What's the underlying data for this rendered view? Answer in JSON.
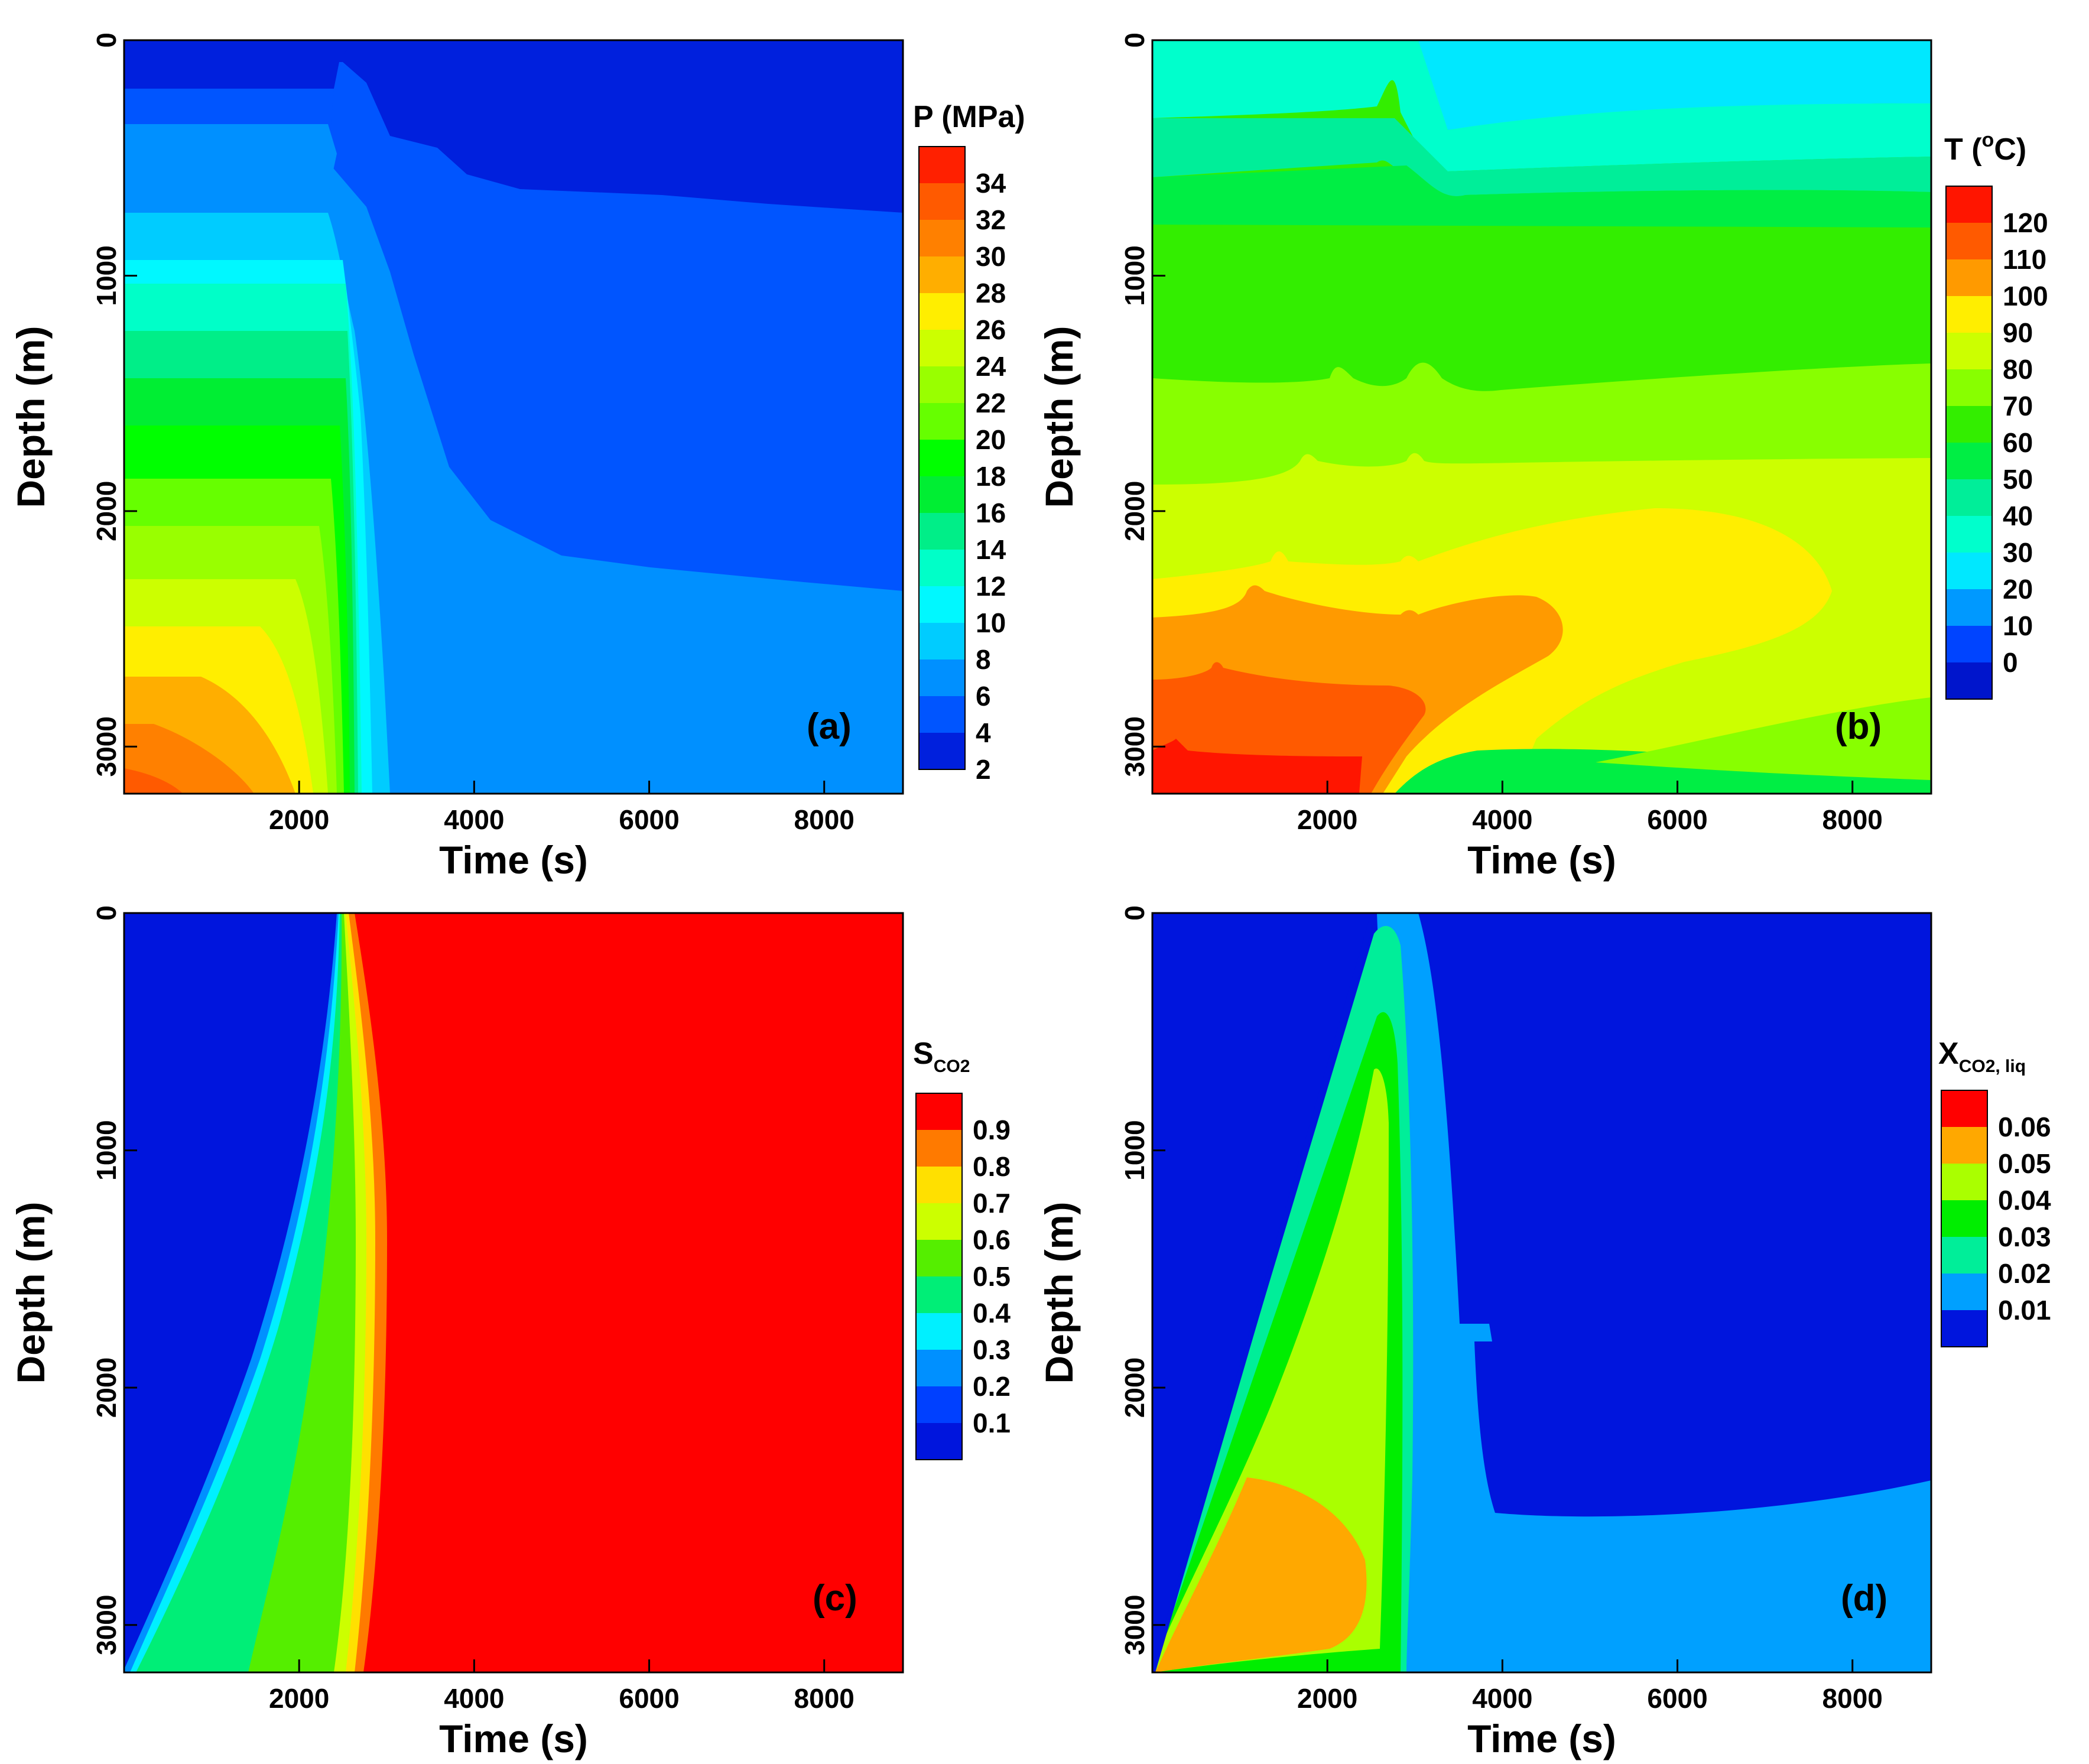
{
  "chart_data": [
    {
      "type": "heatmap",
      "panel": "(a)",
      "xlabel": "Time (s)",
      "ylabel": "Depth (m)",
      "xlim": [
        0,
        8900
      ],
      "ylim": [
        0,
        3200
      ],
      "xticks": [
        2000,
        4000,
        6000,
        8000
      ],
      "yticks": [
        0,
        1000,
        2000,
        3000
      ],
      "colorbar": {
        "title": "P (MPa)",
        "labels": [
          "34",
          "32",
          "30",
          "28",
          "26",
          "24",
          "22",
          "20",
          "18",
          "16",
          "14",
          "12",
          "10",
          "8",
          "6",
          "4",
          "2"
        ],
        "colors": [
          "#ff2000",
          "#ff5a00",
          "#ff8000",
          "#ffae00",
          "#ffee00",
          "#ccff00",
          "#99ff00",
          "#66ff00",
          "#00ff00",
          "#00ee33",
          "#00ee88",
          "#00ffc8",
          "#00f8ff",
          "#00ccff",
          "#0090ff",
          "#0055ff",
          "#0020dd"
        ]
      }
    },
    {
      "type": "heatmap",
      "panel": "(b)",
      "xlabel": "Time (s)",
      "ylabel": "Depth (m)",
      "xlim": [
        0,
        8900
      ],
      "ylim": [
        0,
        3200
      ],
      "xticks": [
        2000,
        4000,
        6000,
        8000
      ],
      "yticks": [
        0,
        1000,
        2000,
        3000
      ],
      "colorbar": {
        "title_main": "T (",
        "title_sup": "o",
        "title_end": "C)",
        "labels": [
          "120",
          "110",
          "100",
          "90",
          "80",
          "70",
          "60",
          "50",
          "40",
          "30",
          "20",
          "10",
          "0"
        ],
        "colors": [
          "#ff1500",
          "#ff5a00",
          "#ff9a00",
          "#ffee00",
          "#ccff00",
          "#88ff00",
          "#33ee00",
          "#00ee44",
          "#00ee99",
          "#00ffcc",
          "#00e8ff",
          "#0099ff",
          "#0044ff",
          "#0015cc"
        ]
      }
    },
    {
      "type": "heatmap",
      "panel": "(c)",
      "xlabel": "Time (s)",
      "ylabel": "Depth (m)",
      "xlim": [
        0,
        8900
      ],
      "ylim": [
        0,
        3200
      ],
      "xticks": [
        2000,
        4000,
        6000,
        8000
      ],
      "yticks": [
        0,
        1000,
        2000,
        3000
      ],
      "colorbar": {
        "title_main": "S",
        "title_sub": "CO2",
        "labels": [
          "0.9",
          "0.8",
          "0.7",
          "0.6",
          "0.5",
          "0.4",
          "0.3",
          "0.2",
          "0.1"
        ],
        "colors": [
          "#ff0000",
          "#ff7a00",
          "#ffe000",
          "#ccff00",
          "#55ee00",
          "#00ee77",
          "#00f0ff",
          "#0090ff",
          "#0040ff",
          "#0015dd"
        ]
      }
    },
    {
      "type": "heatmap",
      "panel": "(d)",
      "xlabel": "Time (s)",
      "ylabel": "Depth (m)",
      "xlim": [
        0,
        8900
      ],
      "ylim": [
        0,
        3200
      ],
      "xticks": [
        2000,
        4000,
        6000,
        8000
      ],
      "yticks": [
        0,
        1000,
        2000,
        3000
      ],
      "colorbar": {
        "title_main": "X",
        "title_sub": "CO2, liq",
        "labels": [
          "0.06",
          "0.05",
          "0.04",
          "0.03",
          "0.02",
          "0.01"
        ],
        "colors": [
          "#ff0000",
          "#ffa800",
          "#aaff00",
          "#00ee00",
          "#00ee99",
          "#00a0ff",
          "#0015dd"
        ]
      }
    }
  ]
}
